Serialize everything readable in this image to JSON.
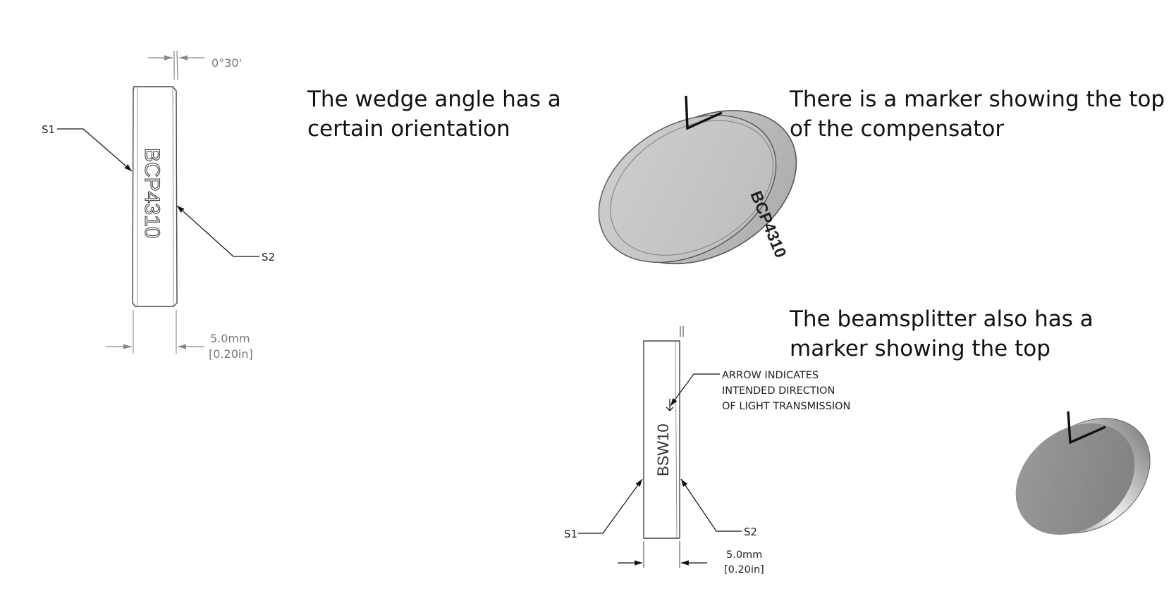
{
  "captions": {
    "wedge": [
      "The wedge angle has a",
      "certain orientation"
    ],
    "marker": [
      "There is a marker showing the top",
      "of the compensator"
    ],
    "beamsplitter": [
      "The beamsplitter also has a",
      "marker showing the top"
    ]
  },
  "drawing_compensator": {
    "angle": "0°30'",
    "part_label": "BCP4310",
    "surface_1": "S1",
    "surface_2": "S2",
    "thickness_mm": "5.0mm",
    "thickness_in": "[0.20in]"
  },
  "drawing_beamsplitter": {
    "part_label": "BSW10",
    "surface_1": "S1",
    "surface_2": "S2",
    "thickness_mm": "5.0mm",
    "thickness_in": "[0.20in]",
    "note": [
      "ARROW INDICATES",
      "INTENDED DIRECTION",
      "OF LIGHT TRANSMISSION"
    ]
  },
  "render_compensator": {
    "part_label": "BCP4310"
  }
}
